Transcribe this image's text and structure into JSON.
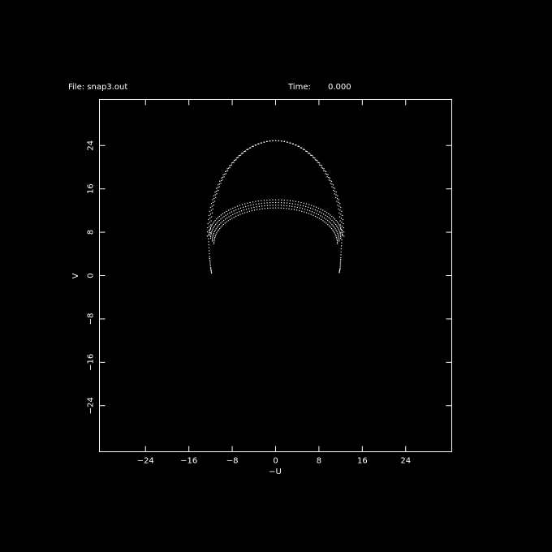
{
  "header": {
    "file_label": "File:",
    "file_name": "snap3.out",
    "time_label": "Time:",
    "time_value": "0.000"
  },
  "chart_data": {
    "type": "scatter",
    "xlabel": "−U",
    "ylabel": "V",
    "xlim": [
      -32.5,
      32.5
    ],
    "ylim": [
      -32.5,
      32.5
    ],
    "xticks": [
      -24,
      -16,
      -8,
      0,
      8,
      16,
      24
    ],
    "yticks": [
      24,
      16,
      8,
      0,
      -8,
      -16,
      -24
    ],
    "xtick_labels": [
      "−24",
      "−16",
      "−8",
      "0",
      "8",
      "16",
      "24"
    ],
    "ytick_labels": [
      "24",
      "16",
      "8",
      "0",
      "−8",
      "−16",
      "−24"
    ],
    "grid": false,
    "colors": {
      "background": "#000000",
      "foreground": "#ffffff"
    },
    "series": [
      {
        "arcs": [
          {
            "a": 12.6,
            "b": 17.6,
            "v0": 7.3
          },
          {
            "a": 12.3,
            "b": 17.3,
            "v0": 7.6
          },
          {
            "a": 12.0,
            "b": 17.0,
            "v0": 7.9
          },
          {
            "a": 12.3,
            "b": 6.6,
            "v0": 7.4
          },
          {
            "a": 12.0,
            "b": 6.6,
            "v0": 6.9
          },
          {
            "a": 11.7,
            "b": 6.6,
            "v0": 6.4
          },
          {
            "a": 11.4,
            "b": 6.6,
            "v0": 5.9
          }
        ],
        "tails": [
          {
            "u": [
              -12.4,
              -12.2,
              -12.0,
              -11.8
            ],
            "v": [
              6.8,
              3.5,
              1.5,
              0.3
            ]
          },
          {
            "u": [
              12.2,
              12.0,
              11.9,
              11.7
            ],
            "v": [
              6.6,
              3.3,
              1.4,
              0.4
            ]
          }
        ]
      }
    ]
  }
}
